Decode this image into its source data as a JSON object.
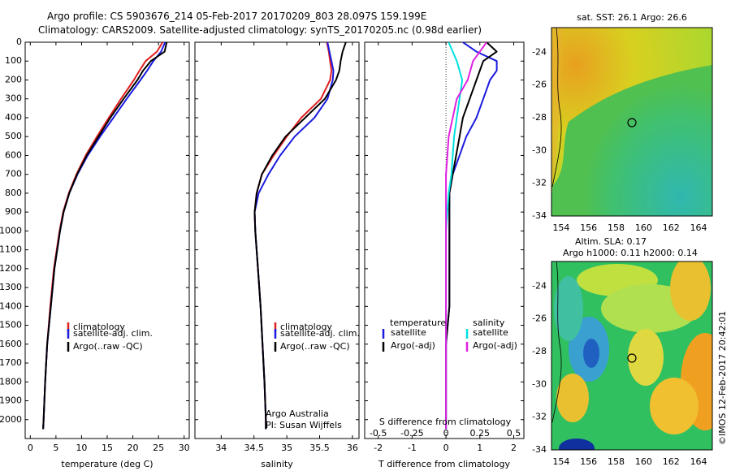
{
  "header": {
    "line1": "Argo profile: CS 5903676_214 05-Feb-2017 20170209_803 28.097S 159.199E",
    "line2": "Climatology: CARS2009. Satellite-adjusted climatology: synTS_20170205.nc (0.98d earlier)"
  },
  "credits": {
    "agency": "Argo Australia",
    "pi": "PI: Susan Wijffels",
    "watermark": "©IMOS 12-Feb-2017 20:42:01"
  },
  "colors": {
    "climatology": "#e02020",
    "satellite": "#1a1ae0",
    "argo": "#000000",
    "salinity_sat": "#00e0e0",
    "salinity_argo": "#e020e0"
  },
  "maps": {
    "sst_title": "sat. SST: 26.1  Argo: 26.6",
    "sla_title_1": "Altim. SLA: 0.17",
    "sla_title_2": "Argo h1000: 0.11  h2000: 0.14",
    "lon_ticks": [
      "154",
      "156",
      "158",
      "160",
      "162",
      "164"
    ],
    "lat_ticks": [
      "-24",
      "-26",
      "-28",
      "-30",
      "-32",
      "-34"
    ],
    "float_position": {
      "lat": -28.097,
      "lon": 159.199
    }
  },
  "chart_data": [
    {
      "type": "line",
      "xlabel": "temperature (deg C)",
      "ylabel": "",
      "xlim": [
        -1,
        31
      ],
      "ylim": [
        2100,
        0
      ],
      "xticks": [
        "0",
        "5",
        "10",
        "15",
        "20",
        "25",
        "30"
      ],
      "yticks": [
        "0",
        "100",
        "200",
        "300",
        "400",
        "500",
        "600",
        "700",
        "800",
        "900",
        "1000",
        "1100",
        "1200",
        "1300",
        "1400",
        "1500",
        "1600",
        "1700",
        "1800",
        "1900",
        "2000"
      ],
      "legend": [
        "climatology",
        "satellite-adj. clim.",
        "Argo(..raw -QC)"
      ],
      "legend_position": "lower-center",
      "series": [
        {
          "name": "climatology",
          "depth": [
            0,
            50,
            100,
            150,
            200,
            300,
            400,
            500,
            600,
            700,
            800,
            900,
            1000,
            1200,
            1400,
            1600,
            1800,
            2000,
            2050
          ],
          "values": [
            25.8,
            24.7,
            22.5,
            21.3,
            20.2,
            17.7,
            15.3,
            13.0,
            10.8,
            9.0,
            7.5,
            6.4,
            5.7,
            4.6,
            3.9,
            3.3,
            2.9,
            2.6,
            2.5
          ]
        },
        {
          "name": "satellite-adj. clim.",
          "depth": [
            0,
            50,
            100,
            150,
            200,
            300,
            400,
            500,
            600,
            700,
            800,
            900,
            1000,
            1200,
            1400,
            1600,
            1800,
            2000,
            2050
          ],
          "values": [
            26.3,
            25.5,
            24.0,
            22.8,
            21.5,
            18.8,
            16.2,
            13.6,
            11.2,
            9.2,
            7.6,
            6.5,
            5.8,
            4.7,
            4.0,
            3.3,
            2.9,
            2.6,
            2.5
          ]
        },
        {
          "name": "Argo(..raw -QC)",
          "depth": [
            0,
            50,
            100,
            150,
            200,
            300,
            400,
            500,
            600,
            700,
            800,
            900,
            1000,
            1200,
            1400,
            1600,
            1800,
            2000,
            2050
          ],
          "values": [
            26.6,
            26.2,
            23.5,
            22.0,
            20.9,
            18.2,
            15.6,
            13.3,
            11.0,
            9.1,
            7.6,
            6.5,
            5.8,
            4.7,
            4.0,
            3.3,
            2.9,
            2.6,
            2.5
          ]
        }
      ]
    },
    {
      "type": "line",
      "xlabel": "salinity",
      "ylabel": "",
      "xlim": [
        33.6,
        36.1
      ],
      "ylim": [
        2100,
        0
      ],
      "xticks": [
        "34",
        "34.5",
        "35",
        "35.5",
        "36"
      ],
      "legend": [
        "climatology",
        "satellite-adj. clim.",
        "Argo(..raw -QC)"
      ],
      "legend_position": "lower-right",
      "series": [
        {
          "name": "climatology",
          "depth": [
            0,
            50,
            100,
            150,
            200,
            300,
            400,
            500,
            600,
            700,
            800,
            900,
            1000,
            1200,
            1400,
            1600,
            1800,
            2000,
            2050
          ],
          "values": [
            35.61,
            35.64,
            35.66,
            35.68,
            35.66,
            35.52,
            35.22,
            35.0,
            34.8,
            34.62,
            34.54,
            34.51,
            34.52,
            34.56,
            34.6,
            34.63,
            34.66,
            34.68,
            34.68
          ]
        },
        {
          "name": "satellite-adj. clim.",
          "depth": [
            0,
            50,
            100,
            150,
            200,
            300,
            400,
            500,
            600,
            700,
            800,
            900,
            1000,
            1200,
            1400,
            1600,
            1800,
            2000,
            2050
          ],
          "values": [
            35.62,
            35.65,
            35.68,
            35.71,
            35.7,
            35.62,
            35.42,
            35.12,
            34.9,
            34.72,
            34.57,
            34.51,
            34.52,
            34.56,
            34.6,
            34.63,
            34.66,
            34.68,
            34.68
          ]
        },
        {
          "name": "Argo(..raw -QC)",
          "depth": [
            0,
            50,
            100,
            150,
            200,
            300,
            400,
            500,
            600,
            700,
            800,
            900,
            1000,
            1200,
            1400,
            1600,
            1800,
            2000,
            2050
          ],
          "values": [
            35.9,
            35.85,
            35.82,
            35.8,
            35.75,
            35.58,
            35.28,
            34.98,
            34.78,
            34.62,
            34.54,
            34.51,
            34.52,
            34.56,
            34.6,
            34.63,
            34.66,
            34.68,
            34.68
          ]
        }
      ]
    },
    {
      "type": "line",
      "xlabel": "T difference from climatology",
      "xlabel_top": "S difference from climatology",
      "xlim": [
        -2.4,
        2.3
      ],
      "ylim": [
        2100,
        0
      ],
      "xticks": [
        "-2",
        "-1",
        "0",
        "1",
        "2"
      ],
      "xticks_top": [
        "-0.5",
        "-0.25",
        "0",
        "0.25",
        "0.5"
      ],
      "legend_temperature_header": "temperature",
      "legend_salinity_header": "salinity",
      "legend": [
        "satellite",
        "Argo(-adj)",
        "satellite",
        "Argo(-adj)"
      ],
      "series": [
        {
          "name": "satellite",
          "depth": [
            0,
            50,
            100,
            150,
            200,
            300,
            400,
            500,
            600,
            700,
            800,
            900,
            1000,
            1200,
            1400,
            1600,
            1800,
            2000,
            2050
          ],
          "values": [
            0.5,
            0.9,
            1.5,
            1.5,
            1.3,
            1.1,
            0.9,
            0.6,
            0.4,
            0.2,
            0.1,
            0.1,
            0.1,
            0.1,
            0.1,
            0.0,
            0.0,
            0.0,
            0.0
          ]
        },
        {
          "name": "Argo(-adj)",
          "depth": [
            0,
            50,
            100,
            150,
            200,
            300,
            400,
            500,
            600,
            700,
            800,
            900,
            1000,
            1200,
            1400,
            1600,
            1800,
            2000,
            2050
          ],
          "values": [
            1.2,
            1.5,
            1.1,
            1.0,
            0.9,
            0.7,
            0.5,
            0.4,
            0.3,
            0.2,
            0.1,
            0.1,
            0.1,
            0.1,
            0.1,
            0.0,
            0.0,
            0.0,
            0.0
          ]
        },
        {
          "name": "satellite",
          "depth": [
            0,
            50,
            100,
            150,
            200,
            300,
            400,
            500,
            600,
            700,
            800,
            900,
            1000,
            1200,
            1400,
            1600,
            1800,
            2000,
            2050
          ],
          "values": [
            0.02,
            0.05,
            0.08,
            0.1,
            0.12,
            0.1,
            0.08,
            0.06,
            0.05,
            0.04,
            0.02,
            0.01,
            0.0,
            0.0,
            0.0,
            0.0,
            0.0,
            0.0,
            0.0
          ]
        },
        {
          "name": "Argo(-adj)",
          "depth": [
            0,
            50,
            100,
            150,
            200,
            300,
            400,
            500,
            600,
            700,
            800,
            900,
            1000,
            1200,
            1400,
            1600,
            1800,
            2000,
            2050
          ],
          "values": [
            0.3,
            0.25,
            0.2,
            0.18,
            0.16,
            0.08,
            0.05,
            0.02,
            0.01,
            0.0,
            0.0,
            0.0,
            0.0,
            0.0,
            0.0,
            0.0,
            0.0,
            0.0,
            0.0
          ]
        }
      ]
    }
  ]
}
